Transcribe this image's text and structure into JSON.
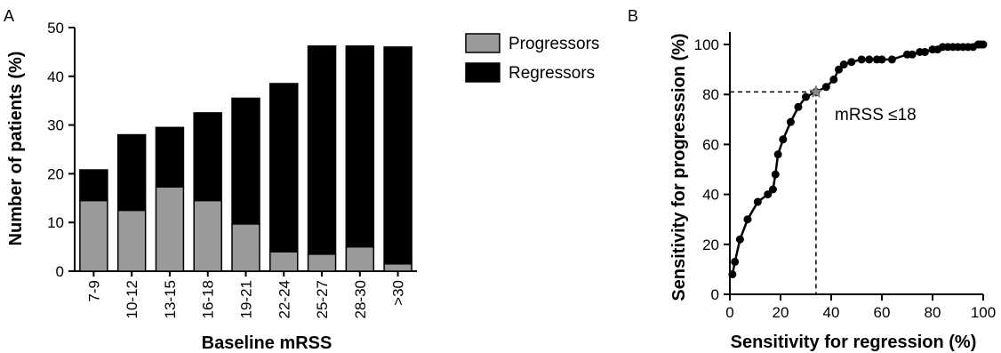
{
  "panels": {
    "a_label": "A",
    "b_label": "B"
  },
  "chart_data": [
    {
      "type": "bar",
      "stacked": true,
      "panel": "A",
      "title": "",
      "xlabel": "Baseline mRSS",
      "ylabel": "Number of patients (%)",
      "ylim": [
        0,
        50
      ],
      "yticks": [
        0,
        10,
        20,
        30,
        40,
        50
      ],
      "categories": [
        "7-9",
        "10-12",
        "13-15",
        "16-18",
        "19-21",
        "22-24",
        "25-27",
        "28-30",
        ">30"
      ],
      "series": [
        {
          "name": "Progressors",
          "color": "#9a9a9a",
          "values": [
            14.5,
            12.5,
            17.3,
            14.5,
            9.7,
            4.0,
            3.5,
            5.0,
            1.5
          ]
        },
        {
          "name": "Regressors",
          "color": "#000000",
          "values": [
            6.3,
            15.5,
            12.2,
            18.0,
            25.8,
            34.5,
            42.7,
            41.2,
            44.5
          ]
        }
      ],
      "legend": "top-right",
      "grid": false
    },
    {
      "type": "line",
      "panel": "B",
      "title": "",
      "xlabel": "Sensitivity for regression (%)",
      "ylabel": "Sensitivity for progresssion (%)",
      "xlim": [
        0,
        100
      ],
      "ylim": [
        0,
        105
      ],
      "xticks": [
        0,
        20,
        40,
        60,
        80,
        100
      ],
      "yticks": [
        0,
        20,
        40,
        60,
        80,
        100
      ],
      "grid": false,
      "series": [
        {
          "name": "",
          "x": [
            1,
            2,
            4,
            7,
            11,
            15,
            17,
            18,
            19,
            21,
            24,
            27,
            30,
            34,
            38,
            41,
            43,
            45,
            48,
            52,
            55,
            58,
            60,
            64,
            70,
            72,
            75,
            77,
            80,
            82,
            84,
            86,
            88,
            90,
            92,
            94,
            96,
            98,
            99,
            100
          ],
          "y": [
            8,
            13,
            22,
            30,
            37,
            40,
            42,
            48,
            56,
            62,
            69,
            75,
            79,
            81,
            83,
            86,
            90,
            92,
            93,
            94,
            94,
            94,
            94,
            94,
            96,
            96,
            97,
            97,
            98,
            98,
            99,
            99,
            99,
            99,
            99,
            99,
            99,
            100,
            100,
            100
          ]
        }
      ],
      "cutoff": {
        "x": 34,
        "y": 81,
        "label": "mRSS ≤18",
        "color": "#8a8a8a"
      }
    }
  ]
}
